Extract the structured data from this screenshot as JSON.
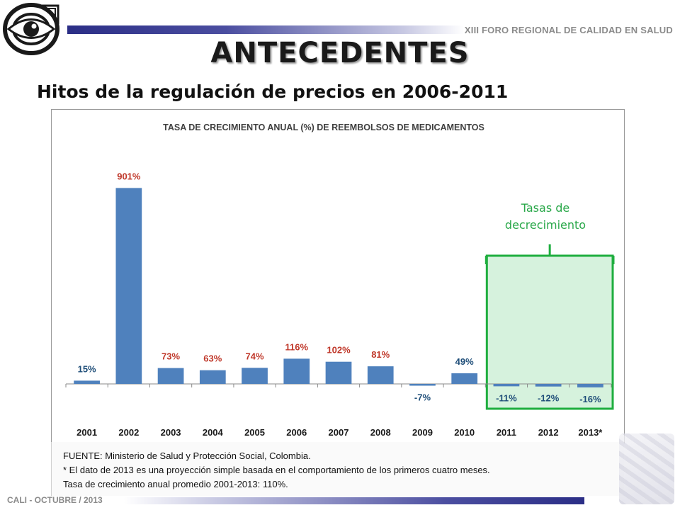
{
  "header": {
    "forum_title": "XIII FORO REGIONAL DE CALIDAD EN SALUD",
    "main_title": "ANTECEDENTES",
    "subtitle": "Hitos de la regulación de precios en 2006-2011"
  },
  "colors": {
    "bar": "#4f81bd",
    "positive_label": "#c0392b",
    "negative_label": "#1f4e79",
    "highlight_border": "#1fae3f",
    "highlight_fill": "#d6f2dd",
    "brand_dark": "#2b2e86"
  },
  "chart_data": {
    "type": "bar",
    "title": "TASA DE CRECIMIENTO ANUAL (%) DE REEMBOLSOS DE MEDICAMENTOS",
    "categories": [
      "2001",
      "2002",
      "2003",
      "2004",
      "2005",
      "2006",
      "2007",
      "2008",
      "2009",
      "2010",
      "2011",
      "2012",
      "2013*"
    ],
    "values": [
      15,
      901,
      73,
      63,
      74,
      116,
      102,
      81,
      -7,
      49,
      -11,
      -12,
      -16
    ],
    "labels": [
      "15%",
      "901%",
      "73%",
      "63%",
      "74%",
      "116%",
      "102%",
      "81%",
      "-7%",
      "49%",
      "-11%",
      "-12%",
      "-16%"
    ],
    "label_colors": [
      "negative",
      "positive",
      "positive",
      "positive",
      "positive",
      "positive",
      "positive",
      "positive",
      "negative",
      "negative",
      "negative",
      "negative",
      "negative"
    ],
    "ylim": [
      -20,
      1000
    ],
    "grid": false,
    "xlabel": "",
    "ylabel": "",
    "highlight": {
      "label_line1": "Tasas de",
      "label_line2": "decrecimiento",
      "categories": [
        "2011",
        "2012",
        "2013*"
      ]
    }
  },
  "notes": {
    "source": "FUENTE: Ministerio de Salud y Protección Social, Colombia.",
    "footnote": "* El dato de 2013 es una proyección simple basada en el comportamiento de los primeros cuatro meses.",
    "average": "Tasa de crecimiento anual promedio 2001-2013: 110%."
  },
  "footer": {
    "event": "CALI - OCTUBRE  / 2013"
  }
}
